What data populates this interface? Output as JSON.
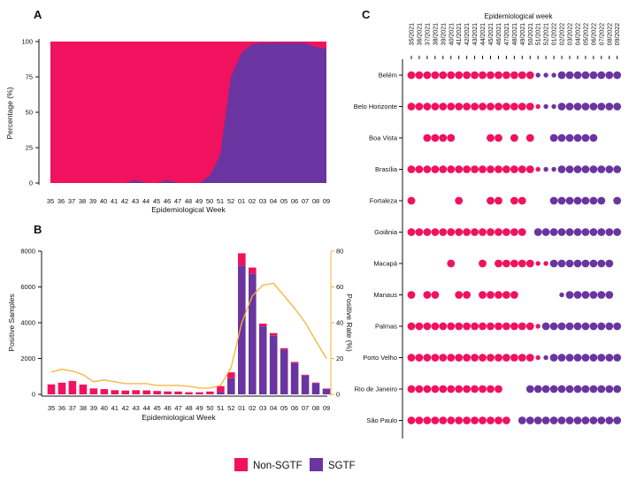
{
  "colors": {
    "non_sgtf": "#f0125e",
    "sgtf": "#6a35a0",
    "rate": "#f5b335",
    "axis": "#111111"
  },
  "legend": [
    {
      "label": "Non-SGTF",
      "color": "#f0125e"
    },
    {
      "label": "SGTF",
      "color": "#6a35a0"
    }
  ],
  "chart_data": [
    {
      "panel": "A",
      "type": "area",
      "xlabel": "Epidemiological Week",
      "ylabel": "Percentage (%)",
      "ylim": [
        0,
        100
      ],
      "yticks": [
        0,
        25,
        50,
        75,
        100
      ],
      "categories": [
        "35",
        "36",
        "37",
        "38",
        "39",
        "40",
        "41",
        "42",
        "43",
        "44",
        "45",
        "46",
        "47",
        "48",
        "49",
        "50",
        "51",
        "52",
        "01",
        "02",
        "03",
        "04",
        "05",
        "06",
        "07",
        "08",
        "09"
      ],
      "series": [
        {
          "name": "SGTF",
          "values": [
            0,
            0,
            0,
            0,
            0,
            0,
            0,
            0,
            2,
            0,
            0,
            2,
            0,
            0,
            0,
            5,
            20,
            75,
            92,
            98,
            99,
            99,
            99,
            99,
            99,
            96,
            95
          ]
        },
        {
          "name": "Non-SGTF",
          "values": [
            100,
            100,
            100,
            100,
            100,
            100,
            100,
            100,
            98,
            100,
            100,
            98,
            100,
            100,
            100,
            95,
            80,
            25,
            8,
            2,
            1,
            1,
            1,
            1,
            1,
            4,
            5
          ]
        }
      ]
    },
    {
      "panel": "B",
      "type": "bar",
      "xlabel": "Epidemiological Week",
      "ylabel": "Positive Samples",
      "y2label": "Positive Rate (%)",
      "ylim": [
        0,
        8000
      ],
      "yticks": [
        0,
        2000,
        4000,
        6000,
        8000
      ],
      "y2lim": [
        0,
        80
      ],
      "y2ticks": [
        0,
        20,
        40,
        60,
        80
      ],
      "categories": [
        "35",
        "36",
        "37",
        "38",
        "39",
        "40",
        "41",
        "42",
        "43",
        "44",
        "45",
        "46",
        "47",
        "48",
        "49",
        "50",
        "51",
        "52",
        "01",
        "02",
        "03",
        "04",
        "05",
        "06",
        "07",
        "08",
        "09"
      ],
      "series": [
        {
          "name": "SGTF",
          "values": [
            0,
            0,
            0,
            0,
            0,
            0,
            0,
            0,
            5,
            0,
            0,
            3,
            0,
            0,
            0,
            10,
            120,
            900,
            7200,
            6750,
            3800,
            3300,
            2500,
            1750,
            1050,
            620,
            300
          ]
        },
        {
          "name": "Non-SGTF",
          "values": [
            560,
            650,
            750,
            550,
            330,
            290,
            230,
            210,
            225,
            220,
            190,
            160,
            160,
            120,
            120,
            150,
            340,
            330,
            680,
            330,
            150,
            120,
            80,
            60,
            45,
            35,
            25
          ]
        }
      ],
      "line": {
        "name": "Positive Rate (%)",
        "values": [
          12.5,
          14,
          13,
          11,
          7,
          8,
          7,
          6,
          6,
          6,
          5,
          5,
          5,
          4.5,
          3.5,
          3.5,
          5,
          15,
          40,
          55,
          61,
          62,
          55,
          48,
          40,
          30,
          20
        ]
      }
    },
    {
      "panel": "C",
      "type": "scatter",
      "xlabel": "Epidemiological week",
      "weeks": [
        "35/2021",
        "36/2021",
        "37/2021",
        "38/2021",
        "39/2021",
        "40/2021",
        "41/2021",
        "42/2021",
        "43/2021",
        "44/2021",
        "45/2021",
        "46/2021",
        "47/2021",
        "48/2021",
        "49/2021",
        "50/2021",
        "51/2021",
        "52/2021",
        "01/2022",
        "02/2022",
        "03/2022",
        "04/2022",
        "05/2022",
        "06/2022",
        "07/2022",
        "08/2022",
        "09/2022"
      ],
      "cities": [
        {
          "name": "Belém",
          "codes": "NNNNNNNNNNNNNNNNsssSSSSSSSS"
        },
        {
          "name": "Belo Horizonte",
          "codes": "NNNNNNNNNNNNNNNNnssSSSSSSSS"
        },
        {
          "name": "Boa Vista",
          "codes": "..NNNN....NN.N.N..SSSSSS..."
        },
        {
          "name": "Brasília",
          "codes": "NNNNNNNNNNNNNNNNnssSSSSSSSS"
        },
        {
          "name": "Fortaleza",
          "codes": "N.....N...NN.NN...SSSSSSS.S"
        },
        {
          "name": "Goiânia",
          "codes": "NNNNNNNNNNNNNNN.SSSSSSSSSSS"
        },
        {
          "name": "Macapá",
          "codes": ".....N...N.NNNNNnnSSSSSSSS."
        },
        {
          "name": "Manaus",
          "codes": "N.NN..NN.NNNNN.....sSSSSSS."
        },
        {
          "name": "Palmas",
          "codes": "NNNNNNNNNNNNNNNNnSSSSSSSSSS"
        },
        {
          "name": "Porto Velho",
          "codes": "NNNNNNNNNNNNNNNNnsSSSSSSSSS"
        },
        {
          "name": "Rio de Janeiro",
          "codes": "NNNNNNNNNNNN...SSSSSSSSSSSS"
        },
        {
          "name": "São Paulo",
          "codes": "NNNNNNNNNNNNN.SSSSSSSSSSSSS"
        }
      ]
    }
  ]
}
